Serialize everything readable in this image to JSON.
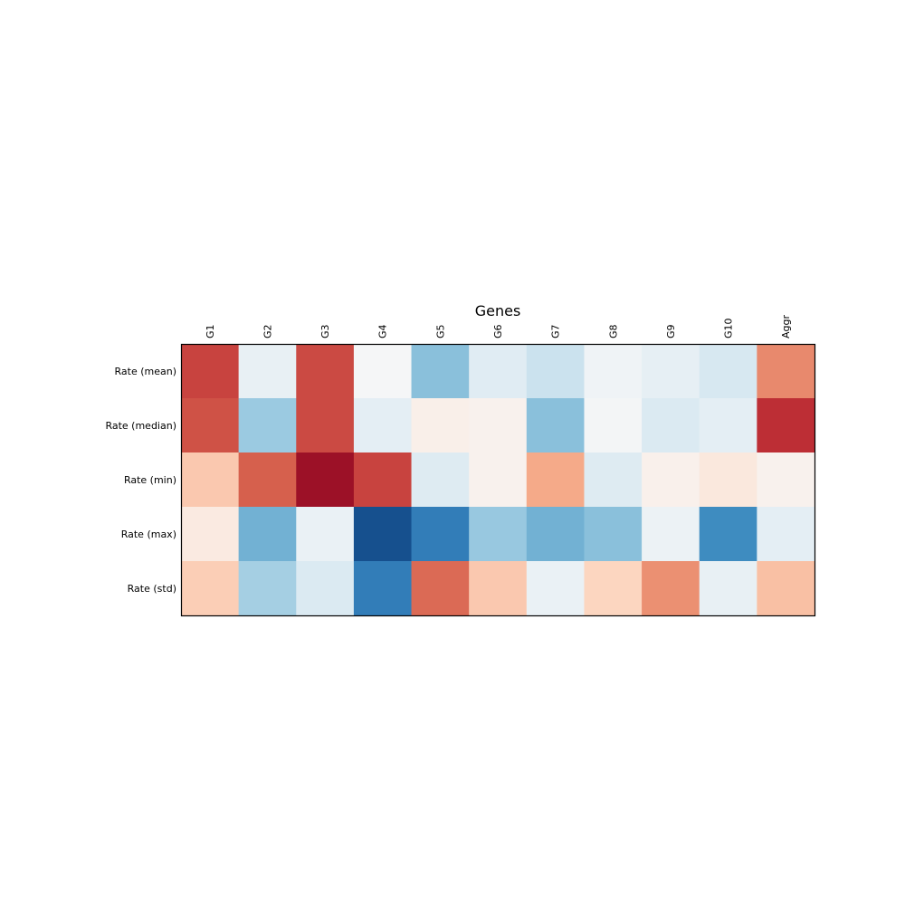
{
  "chart_data": {
    "type": "heatmap",
    "title": "Genes",
    "x_labels": [
      "G1",
      "G2",
      "G3",
      "G4",
      "G5",
      "G6",
      "G7",
      "G8",
      "G9",
      "G10",
      "Aggr"
    ],
    "y_labels": [
      "Rate (mean)",
      "Rate (median)",
      "Rate (min)",
      "Rate (max)",
      "Rate (std)"
    ],
    "values": [
      [
        0.68,
        -0.08,
        0.66,
        -0.01,
        -0.42,
        -0.12,
        -0.22,
        -0.04,
        -0.09,
        -0.17,
        0.48
      ],
      [
        0.64,
        -0.37,
        0.66,
        -0.1,
        0.06,
        0.04,
        -0.42,
        -0.02,
        -0.15,
        -0.1,
        0.74
      ],
      [
        0.27,
        0.6,
        0.86,
        0.68,
        -0.13,
        0.04,
        0.38,
        -0.13,
        0.05,
        0.11,
        0.04
      ],
      [
        0.09,
        -0.48,
        -0.07,
        -0.88,
        -0.7,
        -0.38,
        -0.48,
        -0.42,
        -0.06,
        -0.63,
        -0.1
      ],
      [
        0.25,
        -0.34,
        -0.15,
        -0.7,
        0.57,
        0.27,
        -0.07,
        0.22,
        0.46,
        -0.08,
        0.3
      ]
    ],
    "colormap": "RdBu_r",
    "vmin": -1,
    "vmax": 1,
    "colorbar": false,
    "x_tick_position": "top",
    "x_tick_rotation": 90,
    "grid": false
  }
}
